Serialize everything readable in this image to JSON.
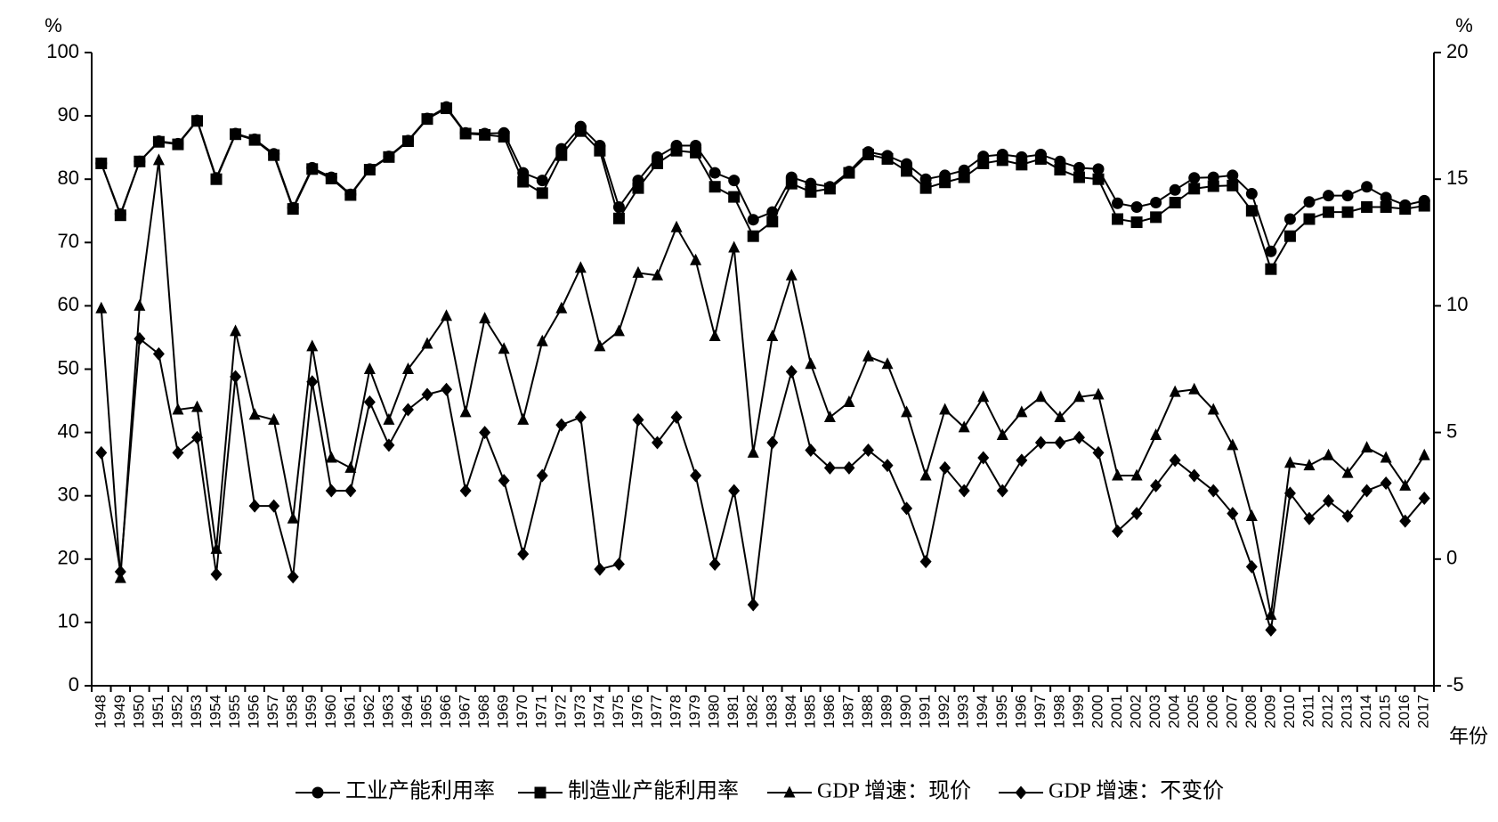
{
  "chart_data": {
    "type": "line",
    "y_unit": "%",
    "y2_unit": "%",
    "x_label": "年份",
    "categories": [
      "1948",
      "1949",
      "1950",
      "1951",
      "1952",
      "1953",
      "1954",
      "1955",
      "1956",
      "1957",
      "1958",
      "1959",
      "1960",
      "1961",
      "1962",
      "1963",
      "1964",
      "1965",
      "1966",
      "1967",
      "1968",
      "1969",
      "1970",
      "1971",
      "1972",
      "1973",
      "1974",
      "1975",
      "1976",
      "1977",
      "1978",
      "1979",
      "1980",
      "1981",
      "1982",
      "1983",
      "1984",
      "1985",
      "1986",
      "1987",
      "1988",
      "1989",
      "1990",
      "1991",
      "1992",
      "1993",
      "1994",
      "1995",
      "1996",
      "1997",
      "1998",
      "1999",
      "2000",
      "2001",
      "2002",
      "2003",
      "2004",
      "2005",
      "2006",
      "2007",
      "2008",
      "2009",
      "2010",
      "2011",
      "2012",
      "2013",
      "2014",
      "2015",
      "2016",
      "2017"
    ],
    "ylim": [
      0,
      100
    ],
    "yticks": [
      0,
      10,
      20,
      30,
      40,
      50,
      60,
      70,
      80,
      90,
      100
    ],
    "y2lim": [
      -5,
      20
    ],
    "y2ticks": [
      -5,
      0,
      5,
      10,
      15,
      20
    ],
    "series": [
      {
        "name": "工业产能利用率",
        "color": "#000000",
        "marker": "circle",
        "axis": "y",
        "values": [
          82.5,
          74.5,
          82.8,
          86,
          85.6,
          89.3,
          80.2,
          87.2,
          86.3,
          84,
          75.5,
          81.8,
          80.3,
          77.6,
          81.6,
          83.6,
          86.1,
          89.6,
          91.4,
          87.3,
          87.2,
          87.3,
          81.0,
          79.8,
          84.8,
          88.3,
          85.3,
          75.6,
          79.8,
          83.5,
          85.3,
          85.3,
          81.0,
          79.8,
          73.6,
          74.8,
          80.3,
          79.3,
          78.8,
          81.2,
          84.3,
          83.7,
          82.4,
          80.0,
          80.6,
          81.4,
          83.6,
          83.9,
          83.5,
          83.9,
          82.8,
          81.8,
          81.6,
          76.2,
          75.6,
          76.3,
          78.3,
          80.2,
          80.3,
          80.6,
          77.7,
          68.6,
          73.7,
          76.4,
          77.4,
          77.4,
          78.8,
          77.1,
          75.9,
          76.6
        ]
      },
      {
        "name": "制造业产能利用率",
        "color": "#000000",
        "marker": "square",
        "axis": "y",
        "values": [
          82.5,
          74.3,
          82.8,
          85.9,
          85.5,
          89.2,
          80.0,
          87.1,
          86.2,
          83.8,
          75.3,
          81.6,
          80.1,
          77.5,
          81.5,
          83.5,
          86.0,
          89.5,
          91.2,
          87.2,
          87.0,
          86.7,
          79.6,
          77.8,
          83.8,
          87.6,
          84.5,
          73.8,
          78.6,
          82.5,
          84.5,
          84.2,
          78.8,
          77.2,
          71.0,
          73.3,
          79.3,
          78.0,
          78.5,
          81.0,
          83.9,
          83.2,
          81.3,
          78.6,
          79.5,
          80.3,
          82.5,
          83.0,
          82.3,
          83.2,
          81.5,
          80.3,
          80.0,
          73.7,
          73.2,
          74.0,
          76.3,
          78.5,
          78.9,
          79.0,
          75.0,
          65.8,
          71.0,
          73.7,
          74.8,
          74.8,
          75.6,
          75.6,
          75.3,
          75.8
        ]
      },
      {
        "name": "GDP 增速：现价",
        "color": "#000000",
        "marker": "triangle",
        "axis": "y2",
        "values": [
          9.9,
          -0.75,
          10.0,
          15.75,
          5.9,
          6.0,
          0.4,
          9.0,
          5.7,
          5.5,
          1.6,
          8.4,
          4.0,
          3.6,
          7.5,
          5.5,
          7.5,
          8.5,
          9.6,
          5.8,
          9.5,
          8.3,
          5.5,
          8.6,
          9.9,
          11.5,
          8.4,
          9.0,
          11.3,
          11.2,
          13.1,
          11.8,
          8.8,
          12.3,
          4.2,
          8.8,
          11.2,
          7.7,
          5.6,
          6.2,
          8.0,
          7.7,
          5.8,
          3.3,
          5.9,
          5.2,
          6.4,
          4.9,
          5.8,
          6.4,
          5.6,
          6.4,
          6.5,
          3.3,
          3.3,
          4.9,
          6.6,
          6.7,
          5.9,
          4.5,
          1.7,
          -2.2,
          3.8,
          3.7,
          4.1,
          3.4,
          4.4,
          4.0,
          2.9,
          4.1
        ]
      },
      {
        "name": "GDP 增速：不变价",
        "color": "#000000",
        "marker": "diamond",
        "axis": "y2",
        "values": [
          4.2,
          -0.5,
          8.7,
          8.1,
          4.2,
          4.8,
          -0.6,
          7.2,
          2.1,
          2.1,
          -0.7,
          7.0,
          2.7,
          2.7,
          6.2,
          4.5,
          5.9,
          6.5,
          6.7,
          2.7,
          5.0,
          3.1,
          0.2,
          3.3,
          5.3,
          5.6,
          -0.4,
          -0.2,
          5.5,
          4.6,
          5.6,
          3.3,
          -0.2,
          2.7,
          -1.8,
          4.6,
          7.4,
          4.3,
          3.6,
          3.6,
          4.3,
          3.7,
          2.0,
          -0.1,
          3.6,
          2.7,
          4.0,
          2.7,
          3.9,
          4.6,
          4.6,
          4.8,
          4.2,
          1.1,
          1.8,
          2.9,
          3.9,
          3.3,
          2.7,
          1.8,
          -0.3,
          -2.8,
          2.6,
          1.6,
          2.3,
          1.7,
          2.7,
          3.0,
          1.5,
          2.4
        ]
      }
    ],
    "legend": "bottom"
  }
}
